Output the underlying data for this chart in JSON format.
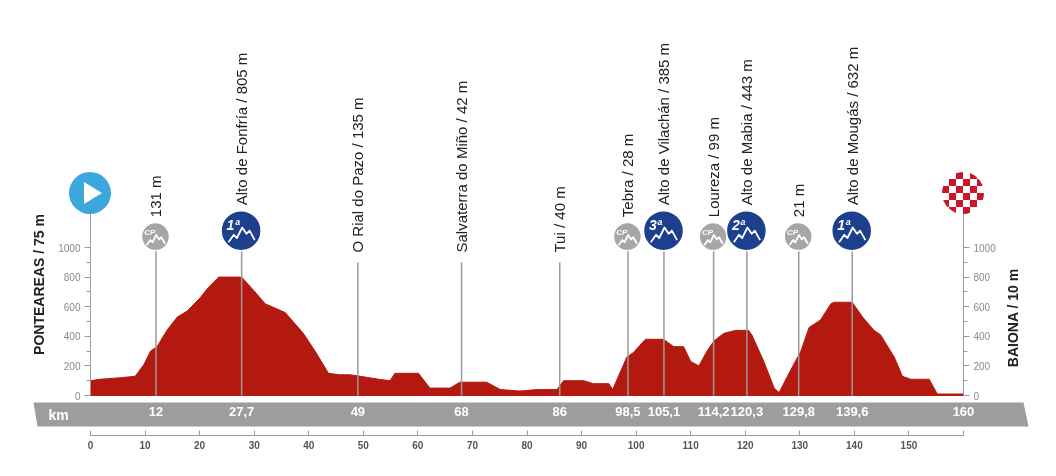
{
  "chart_data": {
    "type": "area",
    "ylabel": "PONTEAREAS / 75 m",
    "y2label": "BAIONA / 10 m",
    "x2label": "km",
    "x": [
      0,
      1.8,
      5.5,
      8.2,
      9.8,
      11,
      12.2,
      14,
      15.9,
      17.7,
      20.1,
      21.6,
      23.5,
      27.7,
      29.9,
      32,
      35.7,
      39,
      41.5,
      43.6,
      45.7,
      47.6,
      49.4,
      52.8,
      54.9,
      55.8,
      60.1,
      62.2,
      65.9,
      67.7,
      72.6,
      75.1,
      78.7,
      81.8,
      85.5,
      86.7,
      90.4,
      92.2,
      95,
      95.7,
      98.3,
      99.5,
      101.7,
      105,
      106.9,
      108.7,
      110,
      111.5,
      113,
      114.3,
      116.1,
      118.2,
      120.6,
      121.2,
      123.4,
      125.3,
      126.2,
      128.3,
      130.2,
      131.7,
      133.8,
      135.7,
      136.3,
      139.6,
      141.5,
      143.6,
      144.8,
      147.3,
      148.8,
      150.3,
      153.7,
      155.2,
      160
    ],
    "series": [
      {
        "color": "#b3190f",
        "values": [
          100,
          110,
          120,
          130,
          210,
          300,
          330,
          440,
          530,
          570,
          660,
          730,
          800,
          800,
          710,
          620,
          560,
          420,
          280,
          150,
          140,
          140,
          130,
          110,
          100,
          150,
          150,
          50,
          50,
          90,
          90,
          40,
          30,
          40,
          40,
          100,
          100,
          80,
          80,
          40,
          260,
          290,
          380,
          380,
          330,
          330,
          230,
          200,
          300,
          370,
          420,
          440,
          440,
          410,
          230,
          50,
          20,
          170,
          300,
          460,
          510,
          620,
          630,
          630,
          530,
          440,
          410,
          260,
          130,
          110,
          110,
          10,
          10
        ]
      }
    ],
    "xlim": [
      0,
      160
    ],
    "xticks": [
      0,
      10,
      20,
      30,
      40,
      50,
      60,
      70,
      80,
      90,
      100,
      110,
      120,
      130,
      140,
      150,
      {
        "value": 160,
        "label": null
      }
    ],
    "x2lim": [
      0,
      160
    ],
    "x2ticks": [
      12,
      {
        "value": 27.7,
        "label": "27,7"
      },
      49,
      68,
      86,
      {
        "value": 98.5,
        "label": "98,5"
      },
      {
        "value": 105.1,
        "label": "105,1"
      },
      {
        "value": 114.2,
        "label": "114,2"
      },
      {
        "value": 120.3,
        "label": "120,3"
      },
      {
        "value": 129.8,
        "label": "129,8"
      },
      {
        "value": 139.6,
        "label": "139,6"
      },
      160
    ],
    "ylim": [
      0,
      1500
    ],
    "yticks": [
      0,
      {
        "value": 100,
        "label": null
      },
      200,
      {
        "value": 300,
        "label": null
      },
      400,
      {
        "value": 500,
        "label": null
      },
      600,
      {
        "value": 700,
        "label": null
      },
      800,
      {
        "value": 900,
        "label": null
      },
      1000
    ],
    "y2lim": [
      0,
      1500
    ],
    "y2ticks": [
      0,
      {
        "value": 100,
        "label": null
      },
      200,
      {
        "value": 300,
        "label": null
      },
      400,
      {
        "value": 500,
        "label": null
      },
      600,
      {
        "value": 700,
        "label": null
      },
      800,
      {
        "value": 900,
        "label": null
      },
      1000
    ],
    "ref_lines": [
      {
        "axis": "x",
        "value": 12,
        "label": "131 m"
      },
      {
        "axis": "x",
        "value": 27.7,
        "label": "Alto de Fonfría / 805 m"
      },
      {
        "axis": "x",
        "value": 49,
        "label": "O Rial do Pazo / 135 m"
      },
      {
        "axis": "x",
        "value": 68,
        "label": "Salvaterra do Miño / 42 m"
      },
      {
        "axis": "x",
        "value": 86,
        "label": "Tui / 40 m"
      },
      {
        "axis": "x",
        "value": 98.5,
        "label": "Tebra / 28 m"
      },
      {
        "axis": "x",
        "value": 105.1,
        "label": "Alto de Vilachán / 385 m"
      },
      {
        "axis": "x",
        "value": 114.2,
        "label": "Loureza / 99 m"
      },
      {
        "axis": "x",
        "value": 120.3,
        "label": "Alto de Mabia / 443 m"
      },
      {
        "axis": "x",
        "value": 129.8,
        "label": "21 m"
      },
      {
        "axis": "x",
        "value": 139.6,
        "label": "Alto de Mougás / 632 m"
      }
    ],
    "annotations": [
      {
        "text": "CP",
        "x": 12,
        "y": 1070
      },
      {
        "text": "1ª",
        "x": 27.7,
        "y": 1110
      },
      {
        "text": "CP",
        "x": 98.5,
        "y": 1070
      },
      {
        "text": "3ª",
        "x": 105.1,
        "y": 1110
      },
      {
        "text": "CP",
        "x": 114.2,
        "y": 1070
      },
      {
        "text": "2ª",
        "x": 120.3,
        "y": 1110
      },
      {
        "text": "CP",
        "x": 129.8,
        "y": 1070
      },
      {
        "text": "1ª",
        "x": 139.6,
        "y": 1110
      }
    ]
  }
}
